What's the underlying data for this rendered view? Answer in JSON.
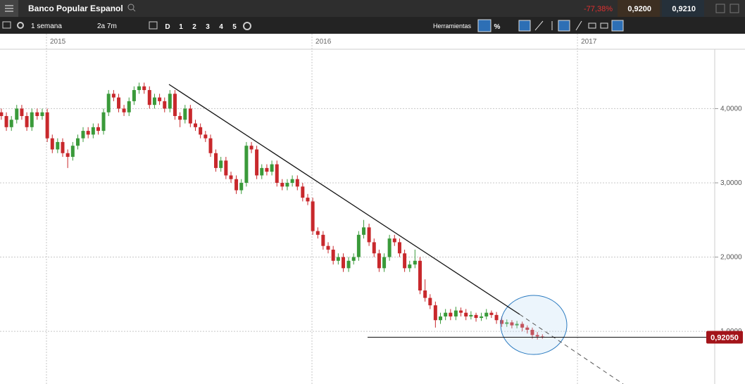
{
  "header": {
    "title": "Banco Popular Espanol",
    "change": "-77,38%",
    "bid": "0,9200",
    "ask": "0,9210"
  },
  "toolbar": {
    "interval": "1 semana",
    "range": "2a 7m",
    "periods": [
      "D",
      "1",
      "2",
      "3",
      "4",
      "5"
    ],
    "tools": "Herramientas",
    "percent": "%"
  },
  "chart_data": {
    "type": "candlestick",
    "x": [
      2014.83,
      2014.849,
      2014.868,
      2014.888,
      2014.907,
      2014.926,
      2014.945,
      2014.965,
      2014.984,
      2015.003,
      2015.022,
      2015.042,
      2015.061,
      2015.08,
      2015.099,
      2015.118,
      2015.138,
      2015.157,
      2015.176,
      2015.195,
      2015.215,
      2015.234,
      2015.253,
      2015.272,
      2015.292,
      2015.311,
      2015.33,
      2015.349,
      2015.368,
      2015.388,
      2015.407,
      2015.426,
      2015.445,
      2015.465,
      2015.484,
      2015.503,
      2015.522,
      2015.542,
      2015.561,
      2015.58,
      2015.599,
      2015.618,
      2015.638,
      2015.657,
      2015.676,
      2015.695,
      2015.715,
      2015.734,
      2015.753,
      2015.772,
      2015.792,
      2015.811,
      2015.83,
      2015.849,
      2015.868,
      2015.888,
      2015.907,
      2015.926,
      2015.945,
      2015.965,
      2015.984,
      2016.003,
      2016.022,
      2016.042,
      2016.061,
      2016.08,
      2016.099,
      2016.118,
      2016.138,
      2016.157,
      2016.176,
      2016.195,
      2016.215,
      2016.234,
      2016.253,
      2016.272,
      2016.292,
      2016.311,
      2016.33,
      2016.349,
      2016.368,
      2016.388,
      2016.407,
      2016.426,
      2016.445,
      2016.465,
      2016.484,
      2016.503,
      2016.522,
      2016.542,
      2016.561,
      2016.58,
      2016.599,
      2016.618,
      2016.638,
      2016.657,
      2016.676,
      2016.695,
      2016.715,
      2016.734,
      2016.753,
      2016.772,
      2016.792,
      2016.811,
      2016.83,
      2016.849,
      2016.868
    ],
    "open": [
      3.95,
      3.9,
      3.75,
      3.85,
      4.0,
      3.9,
      3.75,
      3.95,
      3.9,
      3.95,
      3.6,
      3.45,
      3.55,
      3.4,
      3.35,
      3.5,
      3.6,
      3.7,
      3.65,
      3.75,
      3.7,
      3.95,
      4.2,
      4.15,
      4.0,
      3.95,
      4.1,
      4.25,
      4.3,
      4.25,
      4.05,
      4.15,
      4.1,
      4.0,
      4.2,
      3.9,
      3.85,
      4.0,
      3.8,
      3.75,
      3.65,
      3.6,
      3.4,
      3.2,
      3.3,
      3.1,
      3.05,
      2.9,
      3.0,
      3.5,
      3.45,
      3.1,
      3.2,
      3.15,
      3.25,
      3.0,
      2.95,
      3.0,
      3.05,
      2.95,
      2.8,
      2.75,
      2.35,
      2.3,
      2.15,
      2.1,
      1.95,
      2.0,
      1.85,
      1.95,
      2.0,
      2.3,
      2.4,
      2.2,
      2.05,
      1.85,
      2.0,
      2.25,
      2.2,
      2.05,
      1.85,
      1.9,
      1.95,
      1.55,
      1.45,
      1.35,
      1.15,
      1.2,
      1.25,
      1.2,
      1.28,
      1.25,
      1.2,
      1.22,
      1.18,
      1.2,
      1.25,
      1.22,
      1.15,
      1.1,
      1.12,
      1.08,
      1.1,
      1.05,
      1.02,
      0.95,
      0.93
    ],
    "high": [
      4.0,
      3.95,
      3.9,
      4.05,
      4.05,
      3.95,
      4.0,
      4.0,
      4.0,
      4.0,
      3.65,
      3.6,
      3.6,
      3.45,
      3.55,
      3.65,
      3.75,
      3.75,
      3.8,
      3.8,
      4.0,
      4.25,
      4.25,
      4.2,
      4.05,
      4.15,
      4.3,
      4.35,
      4.35,
      4.3,
      4.2,
      4.2,
      4.15,
      4.25,
      4.25,
      3.95,
      4.05,
      4.05,
      3.85,
      3.8,
      3.7,
      3.65,
      3.45,
      3.35,
      3.35,
      3.15,
      3.1,
      3.05,
      3.55,
      3.55,
      3.5,
      3.25,
      3.25,
      3.3,
      3.3,
      3.05,
      3.05,
      3.1,
      3.1,
      3.0,
      2.85,
      2.8,
      2.4,
      2.35,
      2.2,
      2.15,
      2.05,
      2.05,
      2.0,
      2.05,
      2.35,
      2.5,
      2.45,
      2.25,
      2.1,
      2.05,
      2.3,
      2.3,
      2.25,
      2.1,
      1.95,
      2.1,
      2.0,
      1.7,
      1.5,
      1.4,
      1.25,
      1.3,
      1.3,
      1.33,
      1.32,
      1.3,
      1.27,
      1.25,
      1.25,
      1.3,
      1.28,
      1.26,
      1.2,
      1.16,
      1.15,
      1.14,
      1.13,
      1.08,
      1.05,
      0.99,
      0.96
    ],
    "low": [
      3.85,
      3.7,
      3.7,
      3.8,
      3.85,
      3.7,
      3.7,
      3.85,
      3.85,
      3.55,
      3.4,
      3.4,
      3.35,
      3.2,
      3.3,
      3.45,
      3.55,
      3.6,
      3.6,
      3.65,
      3.65,
      3.9,
      4.1,
      3.95,
      3.9,
      3.9,
      4.05,
      4.2,
      4.2,
      4.0,
      4.0,
      4.05,
      3.95,
      3.95,
      3.85,
      3.75,
      3.8,
      3.75,
      3.7,
      3.6,
      3.55,
      3.35,
      3.15,
      3.15,
      3.05,
      3.0,
      2.85,
      2.85,
      2.95,
      3.4,
      3.05,
      3.05,
      3.1,
      3.1,
      2.95,
      2.9,
      2.9,
      2.95,
      2.9,
      2.75,
      2.7,
      2.3,
      2.25,
      2.1,
      2.05,
      1.9,
      1.9,
      1.8,
      1.8,
      1.9,
      1.95,
      2.25,
      2.15,
      2.0,
      1.8,
      1.8,
      1.95,
      2.15,
      2.0,
      1.8,
      1.8,
      1.85,
      1.5,
      1.4,
      1.3,
      1.05,
      1.1,
      1.15,
      1.15,
      1.15,
      1.2,
      1.15,
      1.16,
      1.13,
      1.14,
      1.16,
      1.18,
      1.1,
      1.06,
      1.06,
      1.04,
      1.04,
      1.0,
      0.97,
      0.9,
      0.89,
      0.9
    ],
    "close": [
      3.9,
      3.75,
      3.85,
      4.0,
      3.9,
      3.75,
      3.95,
      3.9,
      3.95,
      3.6,
      3.45,
      3.55,
      3.4,
      3.35,
      3.5,
      3.6,
      3.7,
      3.65,
      3.75,
      3.7,
      3.95,
      4.2,
      4.15,
      4.0,
      3.95,
      4.1,
      4.25,
      4.3,
      4.25,
      4.05,
      4.15,
      4.1,
      4.0,
      4.2,
      3.9,
      3.85,
      4.0,
      3.8,
      3.75,
      3.65,
      3.6,
      3.4,
      3.2,
      3.3,
      3.1,
      3.05,
      2.9,
      3.0,
      3.5,
      3.45,
      3.1,
      3.2,
      3.15,
      3.25,
      3.0,
      2.95,
      3.0,
      3.05,
      2.95,
      2.8,
      2.75,
      2.35,
      2.3,
      2.15,
      2.1,
      1.95,
      2.0,
      1.85,
      1.95,
      2.0,
      2.3,
      2.4,
      2.2,
      2.05,
      1.85,
      2.0,
      2.25,
      2.2,
      2.05,
      1.85,
      1.9,
      1.95,
      1.55,
      1.45,
      1.35,
      1.15,
      1.2,
      1.25,
      1.2,
      1.28,
      1.25,
      1.2,
      1.22,
      1.18,
      1.2,
      1.25,
      1.22,
      1.15,
      1.1,
      1.12,
      1.08,
      1.1,
      1.05,
      1.02,
      0.95,
      0.93,
      0.92
    ],
    "up_color": "#3a9a3a",
    "down_color": "#c8282c",
    "xlim": [
      2014.825,
      2017.517
    ],
    "xticks": [
      2015,
      2016,
      2017
    ],
    "ylim": [
      0.29,
      4.8
    ],
    "yticks": [
      {
        "value": 1,
        "label": "1,0000"
      },
      {
        "value": 2,
        "label": "2,0000"
      },
      {
        "value": 3,
        "label": "3,0000"
      },
      {
        "value": 4,
        "label": "4,0000"
      }
    ],
    "grid": true,
    "last_price": {
      "value": 0.9205,
      "label": "0,92050"
    }
  }
}
